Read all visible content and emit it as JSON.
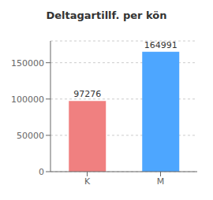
{
  "chart_data": {
    "type": "bar",
    "title": "Deltagartillf. per kön",
    "categories": [
      "K",
      "M"
    ],
    "values": [
      97276,
      164991
    ],
    "colors": [
      "#f08080",
      "#4da6ff"
    ],
    "ylim": [
      0,
      180000
    ],
    "yticks": [
      0,
      50000,
      100000,
      150000
    ],
    "grid": true,
    "data_labels": true
  }
}
